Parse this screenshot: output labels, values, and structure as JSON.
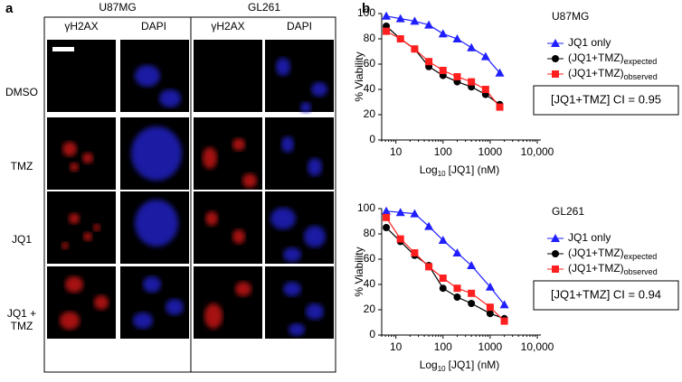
{
  "panel_a": {
    "label": "a",
    "cell_lines": [
      "U87MG",
      "GL261"
    ],
    "stains": [
      "γH2AX",
      "DAPI",
      "γH2AX",
      "DAPI"
    ],
    "treatments": [
      "DMSO",
      "TMZ",
      "JQ1",
      "JQ1 + TMZ"
    ]
  },
  "panel_b": {
    "label": "b"
  },
  "chart_data": [
    {
      "type": "line",
      "subtitle": "U87MG",
      "y_label": "% Viability",
      "x_label": {
        "text": "Log",
        "subscript": "10",
        "suffix": "[JQ1] (nM)"
      },
      "x_scale": "log",
      "xlim": [
        5,
        10000
      ],
      "xticks": [
        10,
        100,
        1000,
        {
          "value": 10000,
          "label": "10,000"
        }
      ],
      "ylim": [
        0,
        100
      ],
      "yticks": [
        0,
        20,
        40,
        60,
        80,
        100
      ],
      "annotation": "[JQ1+TMZ] CI = 0.95",
      "x": [
        6.25,
        12.5,
        25,
        50,
        100,
        200,
        400,
        800,
        1600
      ],
      "series": [
        {
          "name": "JQ1 only",
          "color": "#1f1fff",
          "marker": "triangle",
          "values": [
            98,
            96,
            94,
            91,
            84,
            80,
            73,
            66,
            53
          ]
        },
        {
          "name": "(JQ1+TMZ)",
          "name_subscript": "expected",
          "color": "#000000",
          "marker": "circle",
          "values": [
            90,
            80,
            72,
            58,
            51,
            46,
            42,
            36,
            28
          ]
        },
        {
          "name": "(JQ1+TMZ)",
          "name_subscript": "observed",
          "color": "#ff1f1f",
          "marker": "square",
          "values": [
            86,
            80,
            72,
            62,
            55,
            50,
            46,
            40,
            26
          ]
        }
      ]
    },
    {
      "type": "line",
      "subtitle": "GL261",
      "y_label": "% Viability",
      "x_label": {
        "text": "Log",
        "subscript": "10",
        "suffix": "[JQ1] (nM)"
      },
      "x_scale": "log",
      "xlim": [
        5,
        10000
      ],
      "xticks": [
        10,
        100,
        1000,
        {
          "value": 10000,
          "label": "10,000"
        }
      ],
      "ylim": [
        0,
        100
      ],
      "yticks": [
        0,
        20,
        40,
        60,
        80,
        100
      ],
      "annotation": "[JQ1+TMZ] CI = 0.94",
      "x": [
        6.25,
        12.5,
        25,
        50,
        100,
        200,
        400,
        1000,
        2000
      ],
      "series": [
        {
          "name": "JQ1 only",
          "color": "#1f1fff",
          "marker": "triangle",
          "values": [
            98,
            97,
            96,
            86,
            75,
            65,
            55,
            38,
            24
          ]
        },
        {
          "name": "(JQ1+TMZ)",
          "name_subscript": "expected",
          "color": "#000000",
          "marker": "circle",
          "values": [
            85,
            74,
            63,
            55,
            37,
            30,
            25,
            17,
            13
          ]
        },
        {
          "name": "(JQ1+TMZ)",
          "name_subscript": "observed",
          "color": "#ff1f1f",
          "marker": "square",
          "values": [
            93,
            76,
            65,
            54,
            45,
            37,
            33,
            22,
            11
          ]
        }
      ]
    }
  ]
}
